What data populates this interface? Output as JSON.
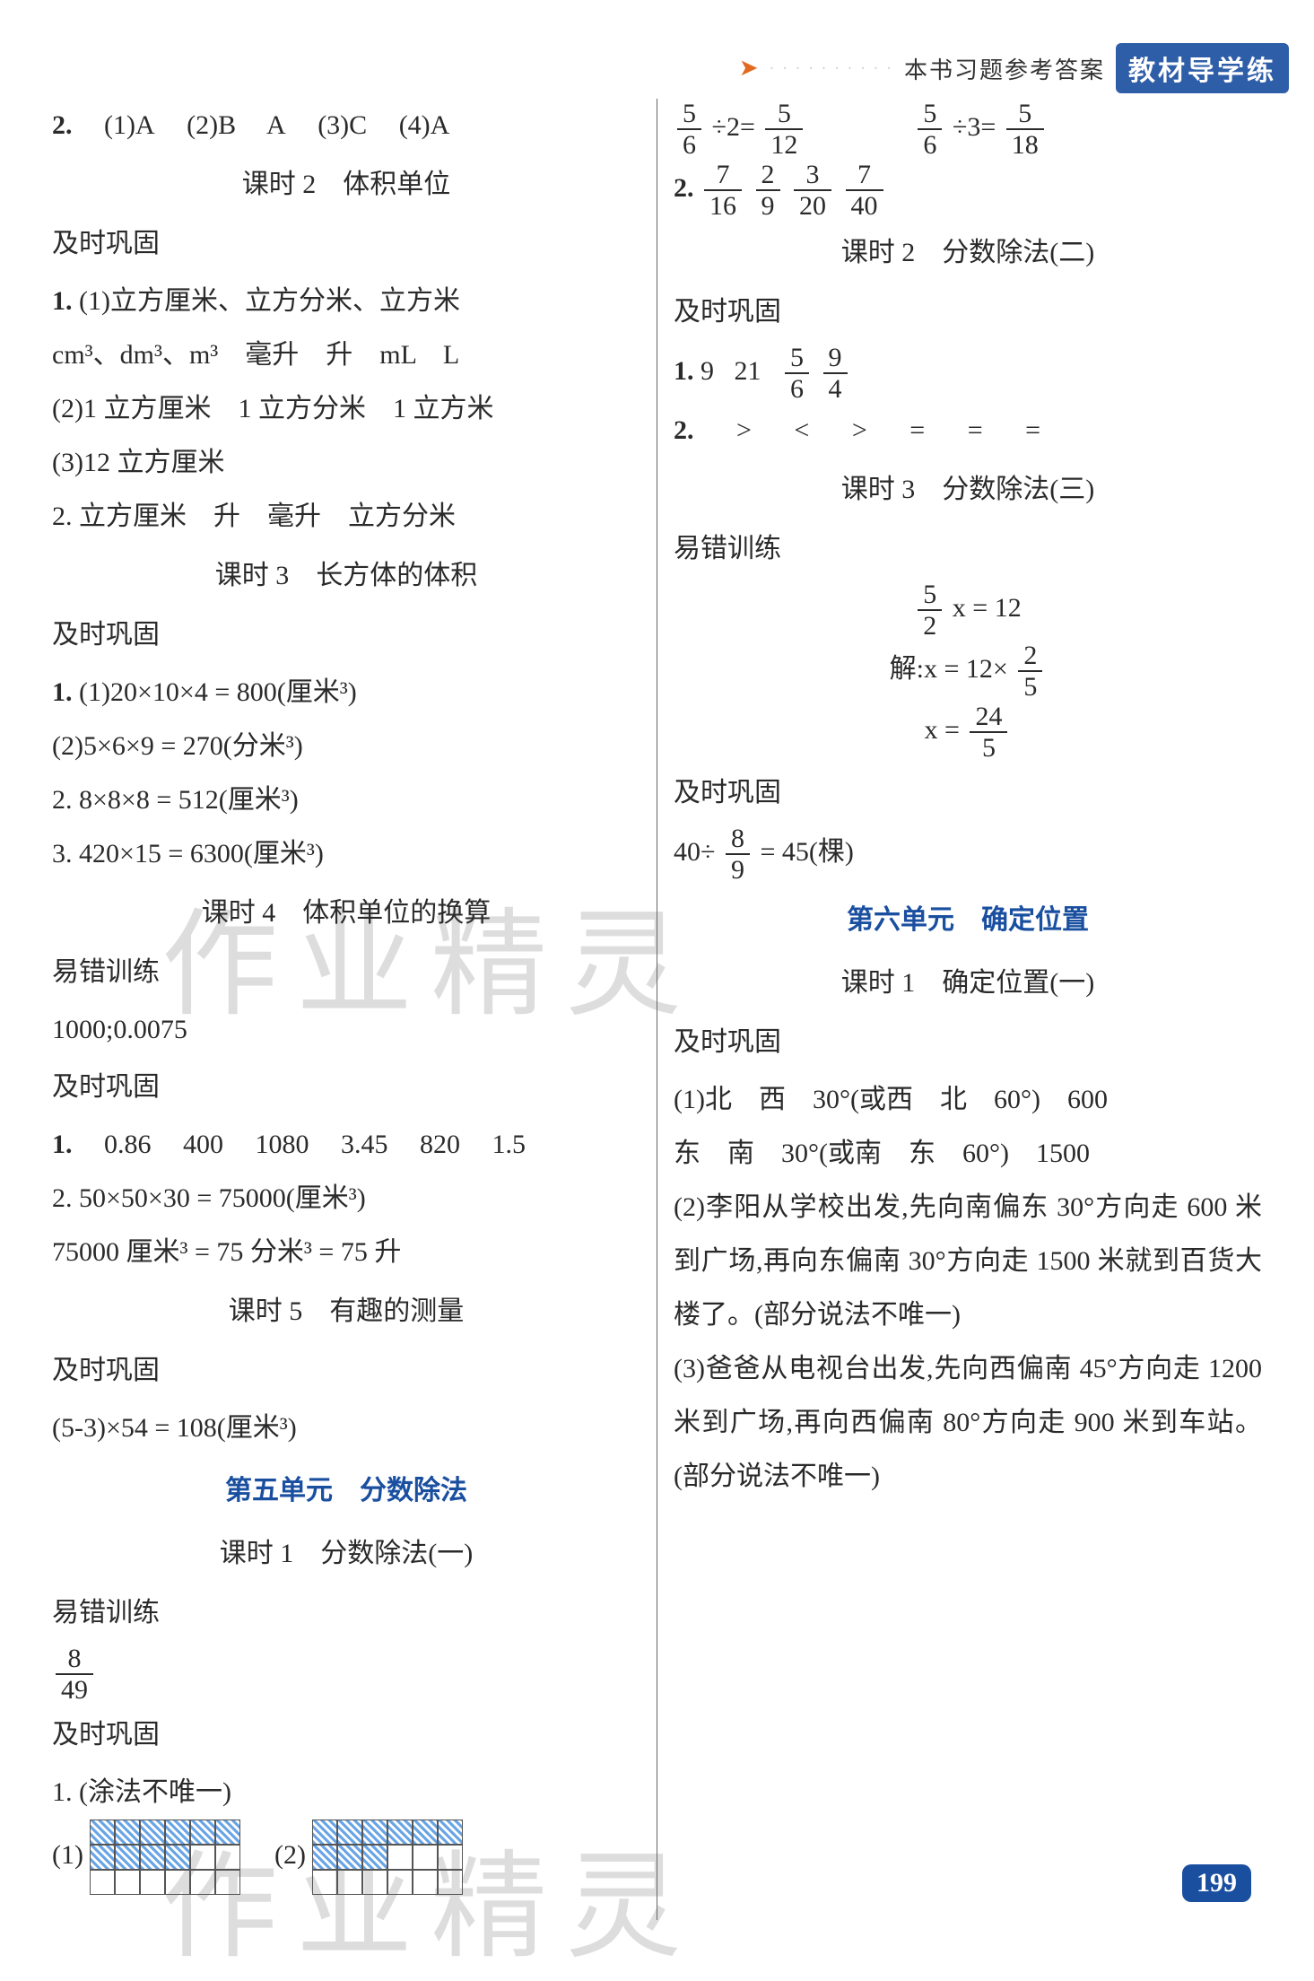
{
  "header": {
    "banner_text": "本书习题参考答案",
    "badge": "教材导学练"
  },
  "page_number": "199",
  "watermark": "作业精灵",
  "left": {
    "q2_prefix": "2.",
    "q2_parts": [
      "(1)A",
      "(2)B",
      "A",
      "(3)C",
      "(4)A"
    ],
    "lesson2_title": "课时 2　体积单位",
    "jishi": "及时巩固",
    "l2_q1_prefix": "1.",
    "l2_q1a": "(1)立方厘米、立方分米、立方米",
    "l2_q1b": "cm³、dm³、m³　毫升　升　mL　L",
    "l2_q1c": "(2)1 立方厘米　1 立方分米　1 立方米",
    "l2_q1d": "(3)12 立方厘米",
    "l2_q2": "2. 立方厘米　升　毫升　立方分米",
    "lesson3_title": "课时 3　长方体的体积",
    "l3_q1_prefix": "1.",
    "l3_q1a": "(1)20×10×4 = 800(厘米³)",
    "l3_q1b": "(2)5×6×9 = 270(分米³)",
    "l3_q2": "2. 8×8×8 = 512(厘米³)",
    "l3_q3": "3. 420×15 = 6300(厘米³)",
    "lesson4_title": "课时 4　体积单位的换算",
    "yicuo": "易错训练",
    "l4_err": "1000;0.0075",
    "l4_q1_prefix": "1.",
    "l4_q1_vals": [
      "0.86",
      "400",
      "1080",
      "3.45",
      "820",
      "1.5"
    ],
    "l4_q2a": "2. 50×50×30 = 75000(厘米³)",
    "l4_q2b": "75000 厘米³ = 75 分米³ = 75 升",
    "lesson5_title": "课时 5　有趣的测量",
    "l5_q": "(5-3)×54 = 108(厘米³)",
    "unit5_title": "第五单元　分数除法",
    "u5_lesson1": "课时 1　分数除法(一)",
    "u5_err_frac": {
      "num": "8",
      "den": "49"
    },
    "u5_q1": "1. (涂法不唯一)",
    "u5_q1_a": "(1)",
    "u5_q1_b": "(2)"
  },
  "right": {
    "eq1a": {
      "lhs_num": "5",
      "lhs_den": "6",
      "op": "÷2=",
      "rhs_num": "5",
      "rhs_den": "12"
    },
    "eq1b": {
      "lhs_num": "5",
      "lhs_den": "6",
      "op": "÷3=",
      "rhs_num": "5",
      "rhs_den": "18"
    },
    "q2_prefix": "2.",
    "q2_fracs": [
      {
        "num": "7",
        "den": "16"
      },
      {
        "num": "2",
        "den": "9"
      },
      {
        "num": "3",
        "den": "20"
      },
      {
        "num": "7",
        "den": "40"
      }
    ],
    "lesson2_title": "课时 2　分数除法(二)",
    "jishi": "及时巩固",
    "l2_q1_prefix": "1.",
    "l2_q1_vals": [
      "9",
      "21"
    ],
    "l2_q1_fracs": [
      {
        "num": "5",
        "den": "6"
      },
      {
        "num": "9",
        "den": "4"
      }
    ],
    "l2_q2_prefix": "2.",
    "l2_q2_ops": [
      ">",
      "<",
      ">",
      "=",
      "=",
      "="
    ],
    "lesson3_title": "课时 3　分数除法(三)",
    "yicuo": "易错训练",
    "err_eq1": {
      "num": "5",
      "den": "2",
      "suffix": "x = 12"
    },
    "err_eq2_prefix": "解:x = 12×",
    "err_eq2_frac": {
      "num": "2",
      "den": "5"
    },
    "err_eq3_prefix": "x =",
    "err_eq3_frac": {
      "num": "24",
      "den": "5"
    },
    "gonggu_eq_prefix": "40÷",
    "gonggu_frac": {
      "num": "8",
      "den": "9"
    },
    "gonggu_eq_suffix": "= 45(棵)",
    "unit6_title": "第六单元　确定位置",
    "u6_lesson1": "课时 1　确定位置(一)",
    "u6_q1": "(1)北　西　30°(或西　北　60°)　600",
    "u6_q1b": "东　南　30°(或南　东　60°)　1500",
    "u6_q2": "(2)李阳从学校出发,先向南偏东 30°方向走 600 米到广场,再向东偏南 30°方向走 1500 米就到百货大楼了。(部分说法不唯一)",
    "u6_q3": "(3)爸爸从电视台出发,先向西偏南 45°方向走 1200 米到广场,再向西偏南 80°方向走 900 米到车站。(部分说法不唯一)"
  }
}
